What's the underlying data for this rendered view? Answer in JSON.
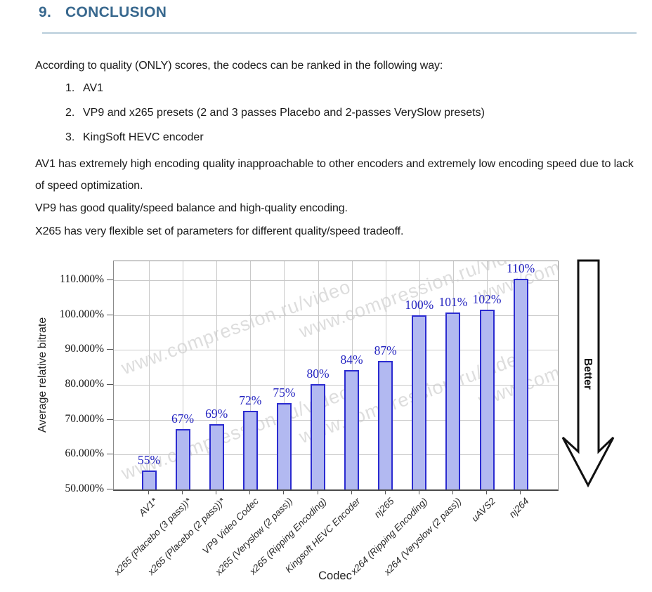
{
  "page": {
    "heading": {
      "number": "9.",
      "title": "CONCLUSION"
    },
    "intro": "According to quality (ONLY) scores, the codecs can be ranked in the following way:",
    "list": [
      {
        "n": "1.",
        "text": "AV1"
      },
      {
        "n": "2.",
        "text": "VP9 and x265 presets (2 and 3 passes Placebo and 2-passes VerySlow presets)"
      },
      {
        "n": "3.",
        "text": "KingSoft HEVC encoder"
      }
    ],
    "paragraphs": [
      "AV1 has extremely high encoding quality inapproachable to other encoders and extremely low encoding speed due to lack of speed optimization.",
      "VP9 has good quality/speed balance and high-quality encoding.",
      "X265 has very flexible set of parameters for different quality/speed tradeoff."
    ]
  },
  "chart_data": {
    "type": "bar",
    "title": "",
    "xlabel": "Codec",
    "ylabel": "Average relative bitrate",
    "ylim": [
      50,
      115.4
    ],
    "yticks": [
      {
        "value": 50,
        "label": "50.000%"
      },
      {
        "value": 60,
        "label": "60.000%"
      },
      {
        "value": 70,
        "label": "70.000%"
      },
      {
        "value": 80,
        "label": "80.000%"
      },
      {
        "value": 90,
        "label": "90.000%"
      },
      {
        "value": 100,
        "label": "100.000%"
      },
      {
        "value": 110,
        "label": "110.000%"
      }
    ],
    "categories": [
      "AV1*",
      "x265 (Placebo (3 pass))*",
      "x265 (Placebo (2 pass))*",
      "VP9 Video Codec",
      "x265 (Veryslow (2 pass))",
      "x265 (Ripping Encoding)",
      "Kingsoft HEVC Encoder",
      "nj265",
      "x264 (Ripping Encoding)",
      "x264 (Veryslow (2 pass))",
      "uAVS2",
      "nj264"
    ],
    "values": [
      55.4,
      67.3,
      68.7,
      72.5,
      74.8,
      80.1,
      84.3,
      86.9,
      100.0,
      100.8,
      101.5,
      110.4
    ],
    "value_labels": [
      "55%",
      "67%",
      "69%",
      "72%",
      "75%",
      "80%",
      "84%",
      "87%",
      "100%",
      "101%",
      "102%",
      "110%"
    ],
    "grid": true,
    "legend": "none",
    "watermark": "www.compression.ru/video",
    "better_arrow_label": "Better",
    "colors": {
      "bar_fill": "#b2b9f1",
      "bar_border": "#2b2bd0",
      "value_label": "#2222c0",
      "heading": "#38688e",
      "gridline": "#c9c9c9"
    }
  }
}
